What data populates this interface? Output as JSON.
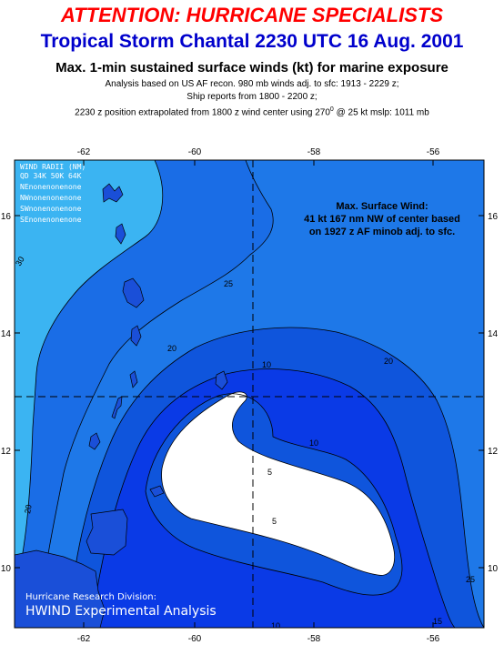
{
  "header": {
    "attention": "ATTENTION: HURRICANE SPECIALISTS",
    "storm_title": "Tropical Storm Chantal 2230 UTC 16 Aug. 2001",
    "metric": "Max. 1-min sustained surface winds (kt) for marine exposure",
    "analysis_line": "Analysis based on US AF recon. 980 mb winds adj. to sfc: 1913 - 2229 z;",
    "ship_line": "Ship reports from  1800 - 2200 z;",
    "position_prefix": "2230 z position extrapolated from 1800 z wind center using 270",
    "position_degree": "0",
    "position_suffix": " @ 25 kt  mslp: 1011 mb"
  },
  "map": {
    "lon_labels": [
      "-62",
      "-60",
      "-58",
      "-56"
    ],
    "lat_labels": [
      "16",
      "14",
      "12",
      "10"
    ],
    "wind_radii": {
      "title": "WIND RADII (NM)",
      "header": "QD  34K 50K 64K",
      "rows": [
        "NEnonenonenone",
        "NWnonenonenone",
        "SWnonenonenone",
        "SEnonenonenone"
      ]
    },
    "max_wind": {
      "line1": "Max. Surface Wind:",
      "line2": "41 kt 167 nm NW of center based",
      "line3": "on 1927 z AF minob adj. to sfc."
    },
    "contour_labels": [
      "30",
      "25",
      "20",
      "10",
      "5",
      "10",
      "5",
      "10",
      "15",
      "20",
      "25",
      "20"
    ],
    "credit": {
      "line1": "Hurricane Research Division:",
      "line2": "HWIND Experimental Analysis"
    },
    "colors": {
      "band_lt20": "#2a9ff0",
      "band_20_25": "#1e78e8",
      "band_25_30": "#1a6de6",
      "band_30plus": "#3bb4f2",
      "band_10_20": "#0f55dc",
      "band_5_10": "#0a3ae6",
      "band_lt5": "#ffffff",
      "land": "#1a4fd8"
    }
  }
}
